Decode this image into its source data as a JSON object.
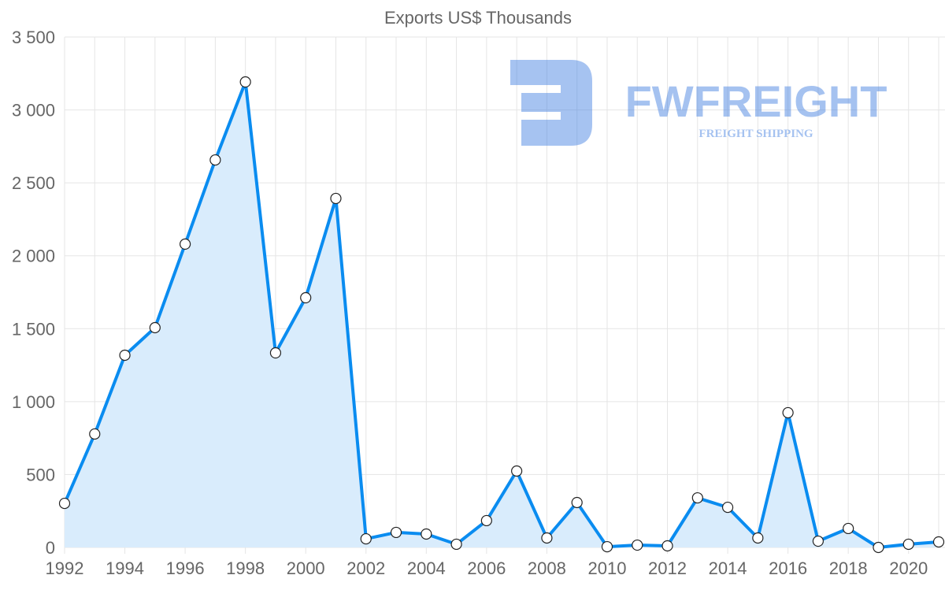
{
  "chart_data": {
    "type": "area",
    "title": "Exports US$ Thousands",
    "xlabel": "",
    "ylabel": "",
    "x": [
      1992,
      1993,
      1994,
      1995,
      1996,
      1997,
      1998,
      1999,
      2000,
      2001,
      2002,
      2003,
      2004,
      2005,
      2006,
      2007,
      2008,
      2009,
      2010,
      2011,
      2012,
      2013,
      2014,
      2015,
      2016,
      2017,
      2018,
      2019,
      2020,
      2021
    ],
    "series": [
      {
        "name": "Exports US$ Thousands",
        "values": [
          302,
          778,
          1318,
          1507,
          2080,
          2657,
          3192,
          1334,
          1712,
          2393,
          59,
          103,
          92,
          22,
          184,
          524,
          65,
          308,
          5,
          16,
          11,
          340,
          275,
          65,
          924,
          43,
          130,
          0,
          22,
          38
        ]
      }
    ],
    "ylim": [
      0,
      3500
    ],
    "xlim": [
      1992,
      2021
    ],
    "y_ticks": [
      "0",
      "500",
      "1 000",
      "1 500",
      "2 000",
      "2 500",
      "3 000",
      "3 500"
    ],
    "x_ticks": [
      "1992",
      "1994",
      "1996",
      "1998",
      "2000",
      "2002",
      "2004",
      "2006",
      "2008",
      "2010",
      "2012",
      "2014",
      "2016",
      "2018",
      "2020"
    ],
    "grid": true,
    "colors": {
      "line": "#0a8cf0",
      "fill": "#d9ecfc",
      "grid": "#e5e5e5"
    }
  },
  "logo": {
    "name": "FWFREIGHT",
    "tagline": "FREIGHT SHIPPING"
  }
}
